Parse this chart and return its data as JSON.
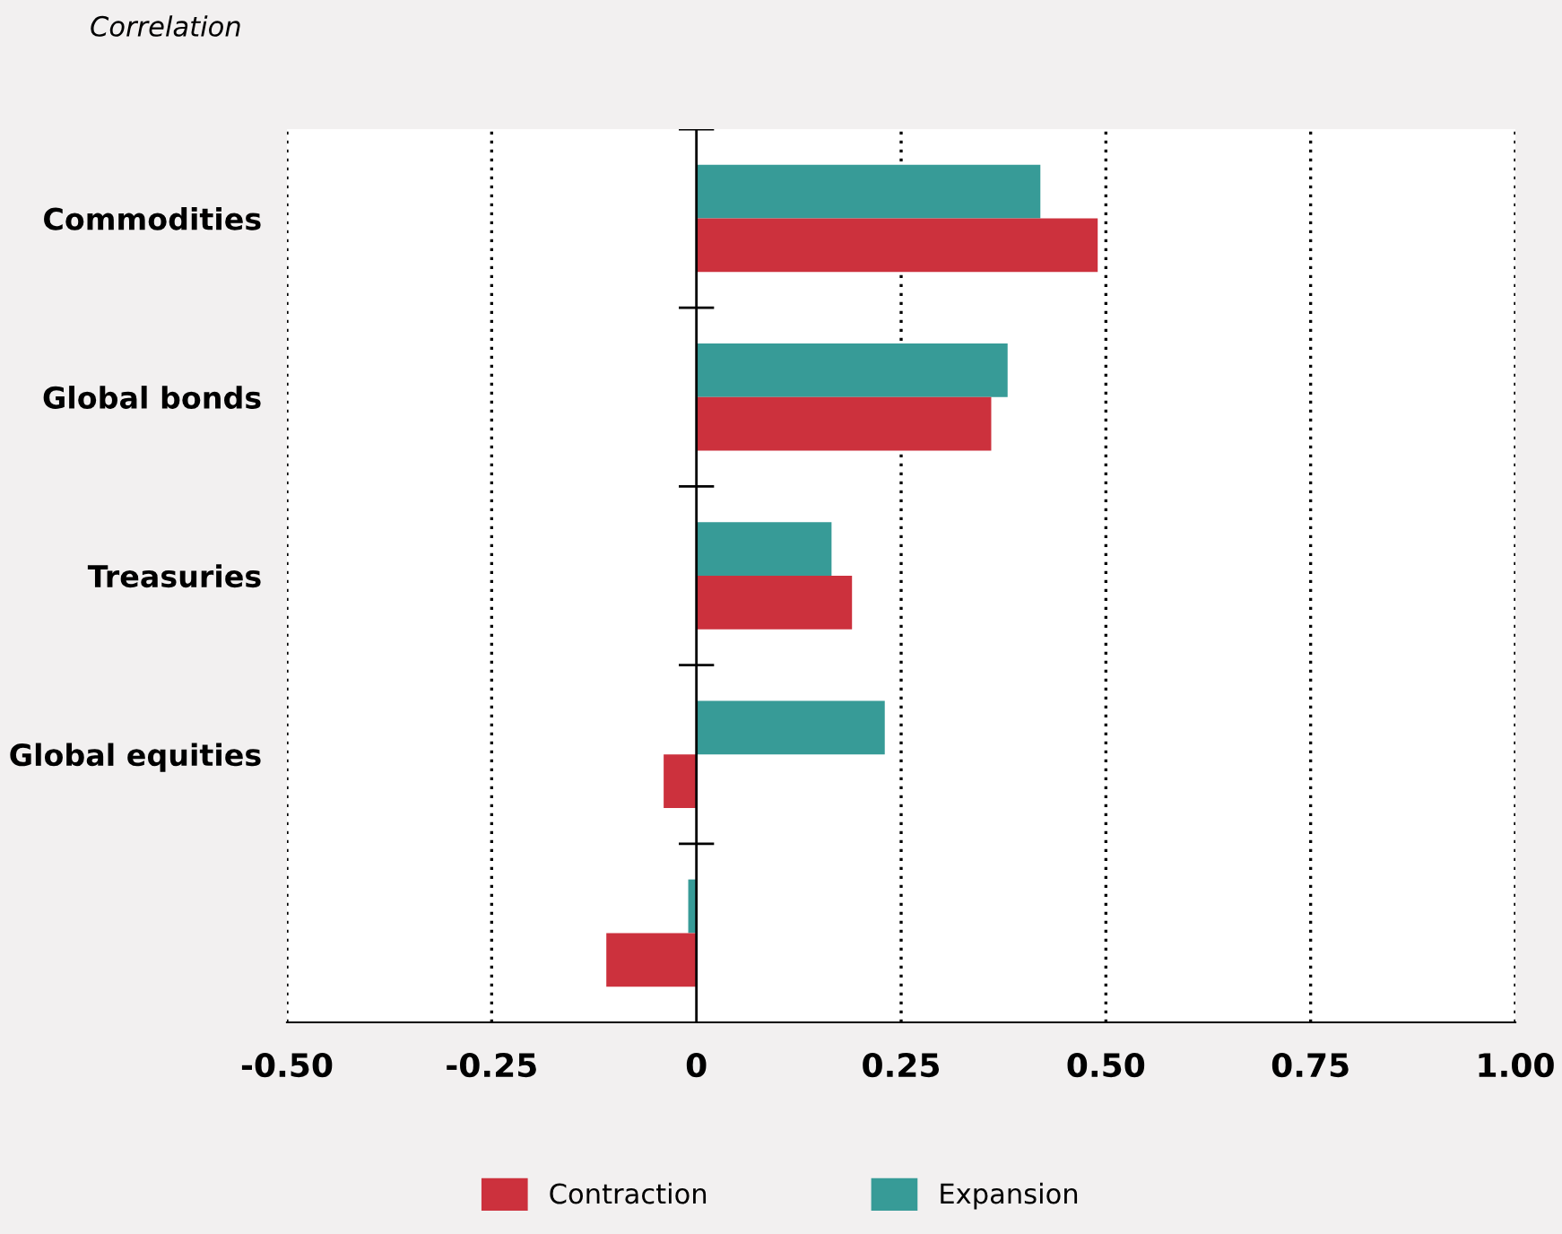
{
  "chart_data": {
    "type": "bar",
    "orientation": "horizontal",
    "title": "Correlation",
    "categories": [
      "Commodities",
      "Global bonds",
      "Treasuries",
      "Global equities",
      null
    ],
    "series": [
      {
        "name": "Expansion",
        "color": "#379b97",
        "values": [
          0.42,
          0.38,
          0.165,
          0.23,
          -0.01
        ]
      },
      {
        "name": "Contraction",
        "color": "#cc313d",
        "values": [
          0.49,
          0.36,
          0.19,
          -0.04,
          -0.11
        ]
      }
    ],
    "xlim": [
      -0.5,
      1.0
    ],
    "xticks": [
      {
        "value": -0.5,
        "label": "-0.50"
      },
      {
        "value": -0.25,
        "label": "-0.25"
      },
      0,
      0.25,
      {
        "value": 0.5,
        "label": "0.50"
      },
      0.75,
      {
        "value": 1.0,
        "label": "1.00"
      }
    ],
    "grid": "x",
    "legend": "bottom"
  }
}
